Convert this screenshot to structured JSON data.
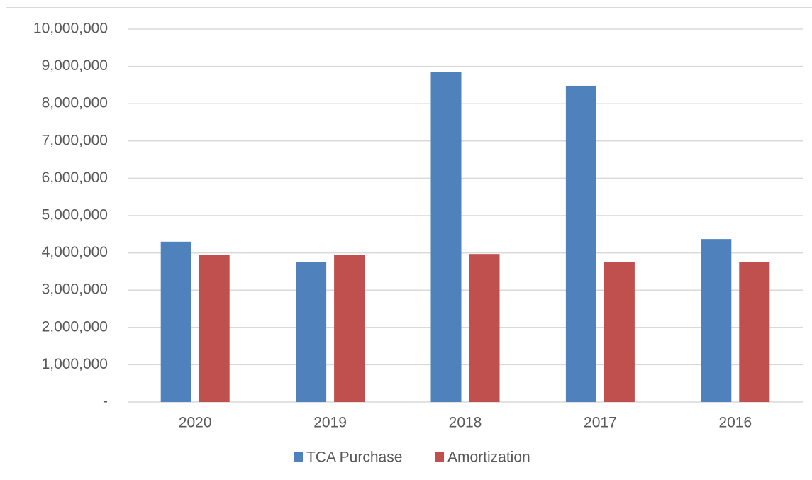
{
  "chart_data": {
    "type": "bar",
    "categories": [
      "2020",
      "2019",
      "2018",
      "2017",
      "2016"
    ],
    "series": [
      {
        "name": "TCA Purchase",
        "color": "#4f81bd",
        "values": [
          4300000,
          3750000,
          8840000,
          8480000,
          4370000
        ]
      },
      {
        "name": "Amortization",
        "color": "#c0504d",
        "values": [
          3950000,
          3940000,
          3970000,
          3750000,
          3750000
        ]
      }
    ],
    "ylim": [
      0,
      10000000
    ],
    "yticks": [
      {
        "value": 0,
        "label": "-"
      },
      {
        "value": 1000000,
        "label": "1,000,000"
      },
      {
        "value": 2000000,
        "label": "2,000,000"
      },
      {
        "value": 3000000,
        "label": "3,000,000"
      },
      {
        "value": 4000000,
        "label": "4,000,000"
      },
      {
        "value": 5000000,
        "label": "5,000,000"
      },
      {
        "value": 6000000,
        "label": "6,000,000"
      },
      {
        "value": 7000000,
        "label": "7,000,000"
      },
      {
        "value": 8000000,
        "label": "8,000,000"
      },
      {
        "value": 9000000,
        "label": "9,000,000"
      },
      {
        "value": 10000000,
        "label": "10,000,000"
      }
    ],
    "grid": true,
    "legend": "bottom"
  }
}
